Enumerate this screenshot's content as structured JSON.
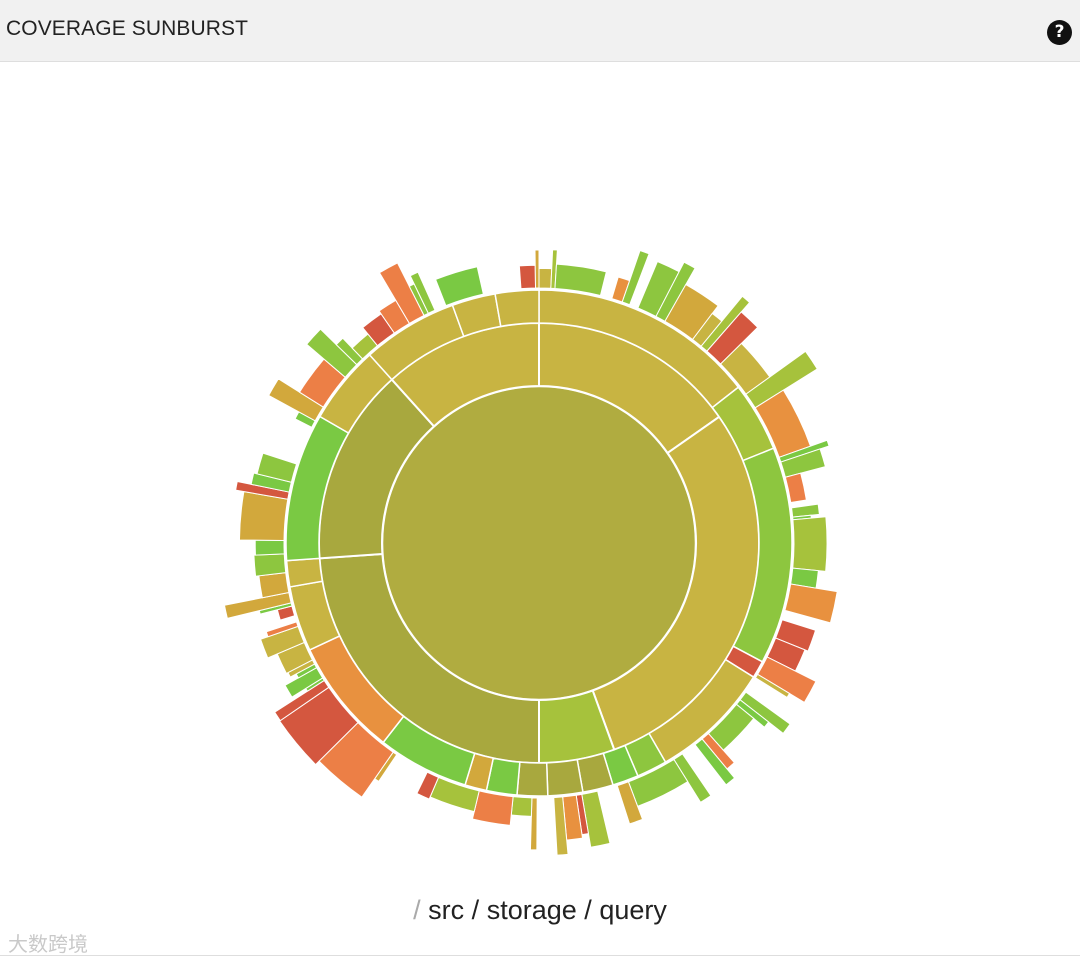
{
  "header": {
    "title": "COVERAGE SUNBURST",
    "help_icon": "question-circle-icon",
    "help_glyph": "?"
  },
  "breadcrumb": {
    "root_separator": "/",
    "separator": "/",
    "items": [
      "src",
      "storage",
      "query"
    ]
  },
  "watermark": {
    "text": "大数跨境"
  },
  "colors": {
    "green": "#7ac943",
    "light_green": "#8dc63f",
    "yellow_green": "#a6c23c",
    "olive": "#b0ac40",
    "olive_dark": "#a8a83e",
    "mustard": "#c8b442",
    "gold": "#d2a83c",
    "orange": "#e8913f",
    "dark_orange": "#ec7f46",
    "red": "#d4573f"
  }
}
